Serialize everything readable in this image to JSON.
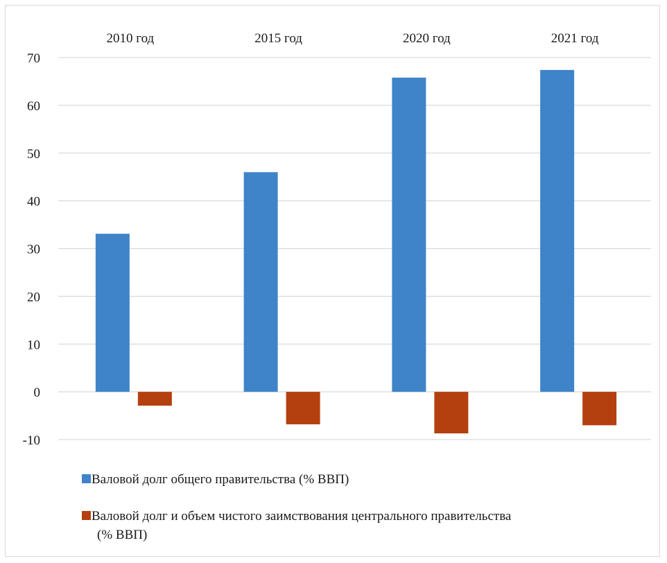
{
  "chart_data": {
    "type": "bar",
    "categories": [
      "2010 год",
      "2015 год",
      "2020 год",
      "2021 год"
    ],
    "series": [
      {
        "name": "Валовой долг общего правительства (% ВВП)",
        "values": [
          33.1,
          46.0,
          65.8,
          67.4
        ],
        "color": "#3f84c9"
      },
      {
        "name": "Валовой долг и объем чистого заимствования центрального правительства (% ВВП)",
        "values": [
          -2.9,
          -6.8,
          -8.7,
          -7.0
        ],
        "color": "#b5400f"
      }
    ],
    "ylim": [
      -10,
      70
    ],
    "yticks": [
      70,
      60,
      50,
      40,
      30,
      20,
      10,
      0,
      -10
    ],
    "grid": true,
    "category_labels_position": "top",
    "legend_position": "bottom-left"
  },
  "legend": {
    "items": [
      {
        "lines": [
          "Валовой долг общего правительства (% ВВП)"
        ],
        "color": "#3f84c9"
      },
      {
        "lines": [
          "Валовой долг и объем чистого заимствования центрального правительства",
          "(% ВВП)"
        ],
        "color": "#b5400f"
      }
    ]
  }
}
